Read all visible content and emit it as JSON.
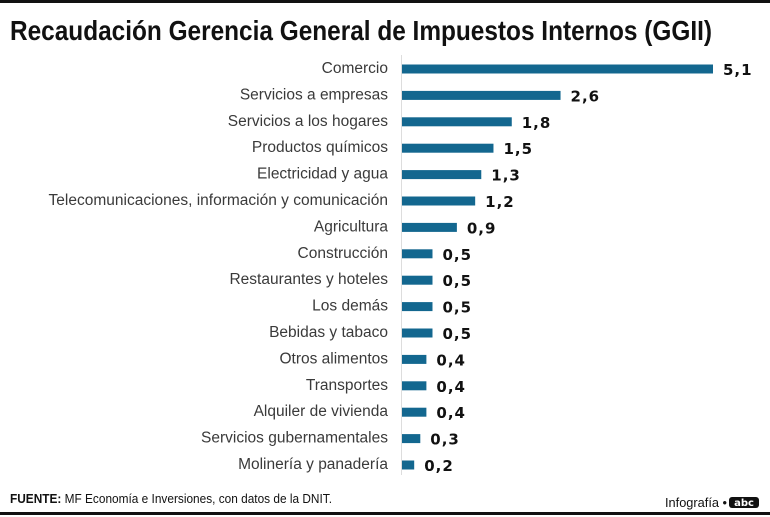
{
  "chart_data": {
    "type": "bar",
    "orientation": "horizontal",
    "title": "Recaudación Gerencia General de Impuestos Internos (GGII)",
    "categories": [
      "Comercio",
      "Servicios a empresas",
      "Servicios a los hogares",
      "Productos químicos",
      "Electricidad y agua",
      "Telecomunicaciones, información y comunicación",
      "Agricultura",
      "Construcción",
      "Restaurantes y hoteles",
      "Los demás",
      "Bebidas y tabaco",
      "Otros alimentos",
      "Transportes",
      "Alquiler de vivienda",
      "Servicios gubernamentales",
      "Molinería y panadería"
    ],
    "values": [
      5.1,
      2.6,
      1.8,
      1.5,
      1.3,
      1.2,
      0.9,
      0.5,
      0.5,
      0.5,
      0.5,
      0.4,
      0.4,
      0.4,
      0.3,
      0.2
    ],
    "value_labels": [
      "5,1",
      "2,6",
      "1,8",
      "1,5",
      "1,3",
      "1,2",
      "0,9",
      "0,5",
      "0,5",
      "0,5",
      "0,5",
      "0,4",
      "0,4",
      "0,4",
      "0,3",
      "0,2"
    ],
    "bar_color": "#13678f",
    "grid": false
  },
  "footer": {
    "source_label": "FUENTE:",
    "source_text": " MF Economía e Inversiones, con datos de la DNIT.",
    "credit": "Infografía •",
    "logo": "abc"
  }
}
